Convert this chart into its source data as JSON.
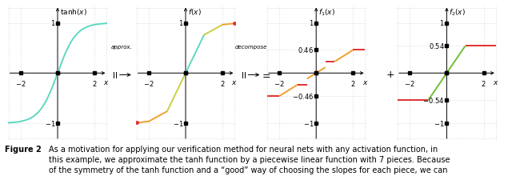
{
  "fig_width": 6.4,
  "fig_height": 2.2,
  "dpi": 100,
  "xlim": [
    -2.7,
    2.7
  ],
  "ylim": [
    -1.35,
    1.35
  ],
  "tanh_color": "#5dd8c0",
  "orange_color": "#f0a030",
  "red_color": "#e03030",
  "green_color": "#70c030",
  "f1_val": 0.46,
  "f2_val": 0.54,
  "grid_color": "#cccccc",
  "label_fontsize": 6.5,
  "tick_fontsize": 6,
  "caption_fontsize": 7.0
}
